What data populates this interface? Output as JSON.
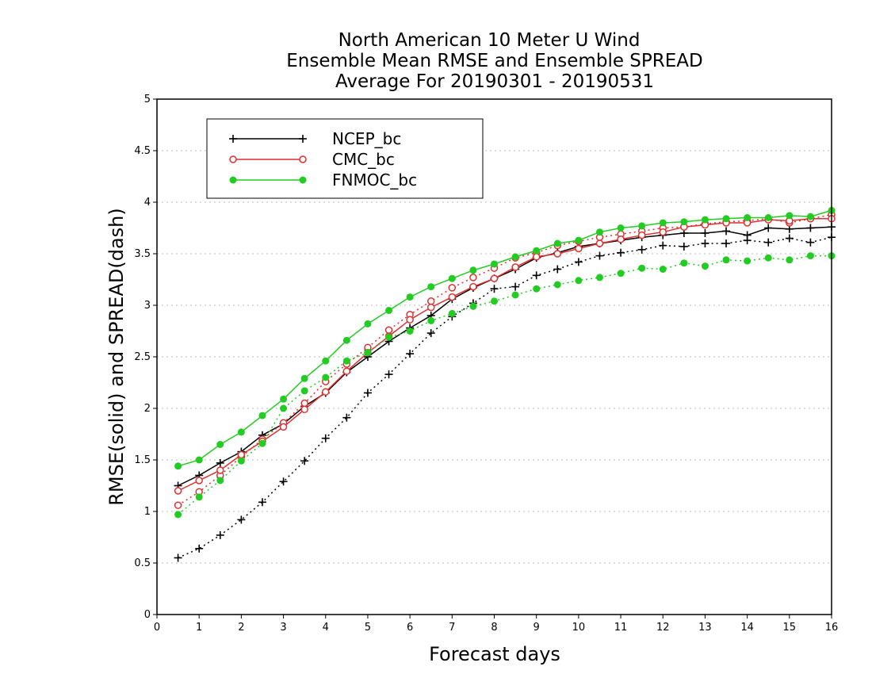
{
  "chart_data": {
    "type": "line",
    "title_lines": [
      "North American 10 Meter U Wind",
      "Ensemble Mean RMSE and Ensemble SPREAD",
      "Average For 20190301 - 20190531"
    ],
    "xlabel": "Forecast days",
    "ylabel": "RMSE(solid) and SPREAD(dash)",
    "xlim": [
      0,
      16
    ],
    "ylim": [
      0,
      5
    ],
    "xticks": [
      "0",
      "1",
      "2",
      "3",
      "4",
      "5",
      "6",
      "7",
      "8",
      "9",
      "10",
      "11",
      "12",
      "13",
      "14",
      "15",
      "16"
    ],
    "yticks": [
      "0",
      "0.5",
      "1",
      "1.5",
      "2",
      "2.5",
      "3",
      "3.5",
      "4",
      "4.5",
      "5"
    ],
    "grid": "horizontal dotted",
    "legend_position": "top-left",
    "x": [
      0.5,
      1,
      1.5,
      2,
      2.5,
      3,
      3.5,
      4,
      4.5,
      5,
      5.5,
      6,
      6.5,
      7,
      7.5,
      8,
      8.5,
      9,
      9.5,
      10,
      10.5,
      11,
      11.5,
      12,
      12.5,
      13,
      13.5,
      14,
      14.5,
      15,
      15.5,
      16
    ],
    "series": [
      {
        "name": "NCEP_bc",
        "color": "#000000",
        "marker": "plus",
        "rmse": [
          1.25,
          1.35,
          1.47,
          1.58,
          1.74,
          1.85,
          2.02,
          2.15,
          2.35,
          2.5,
          2.65,
          2.78,
          2.9,
          3.06,
          3.17,
          3.26,
          3.35,
          3.46,
          3.51,
          3.57,
          3.6,
          3.63,
          3.66,
          3.68,
          3.7,
          3.7,
          3.72,
          3.68,
          3.75,
          3.74,
          3.75,
          3.76
        ],
        "spread": [
          0.55,
          0.64,
          0.77,
          0.92,
          1.09,
          1.29,
          1.49,
          1.71,
          1.91,
          2.15,
          2.33,
          2.53,
          2.73,
          2.89,
          3.02,
          3.16,
          3.18,
          3.29,
          3.35,
          3.42,
          3.48,
          3.51,
          3.54,
          3.58,
          3.57,
          3.6,
          3.6,
          3.63,
          3.61,
          3.65,
          3.61,
          3.66
        ]
      },
      {
        "name": "CMC_bc",
        "color": "#e03030",
        "marker": "open-circle",
        "rmse": [
          1.2,
          1.3,
          1.4,
          1.55,
          1.68,
          1.82,
          1.99,
          2.16,
          2.36,
          2.54,
          2.7,
          2.86,
          2.98,
          3.08,
          3.18,
          3.26,
          3.37,
          3.47,
          3.5,
          3.55,
          3.6,
          3.64,
          3.68,
          3.71,
          3.76,
          3.78,
          3.8,
          3.8,
          3.83,
          3.82,
          3.84,
          3.84
        ],
        "spread": [
          1.06,
          1.19,
          1.35,
          1.53,
          1.7,
          1.86,
          2.05,
          2.26,
          2.43,
          2.59,
          2.76,
          2.91,
          3.04,
          3.17,
          3.27,
          3.36,
          3.46,
          3.51,
          3.58,
          3.62,
          3.66,
          3.69,
          3.72,
          3.75,
          3.76,
          3.79,
          3.81,
          3.82,
          3.84,
          3.8,
          3.84,
          3.88
        ]
      },
      {
        "name": "FNMOC_bc",
        "color": "#22cc22",
        "marker": "filled-circle",
        "rmse": [
          1.44,
          1.5,
          1.65,
          1.77,
          1.93,
          2.09,
          2.29,
          2.46,
          2.66,
          2.82,
          2.95,
          3.08,
          3.18,
          3.26,
          3.34,
          3.4,
          3.47,
          3.53,
          3.6,
          3.63,
          3.71,
          3.75,
          3.77,
          3.8,
          3.81,
          3.83,
          3.84,
          3.85,
          3.85,
          3.87,
          3.86,
          3.92
        ],
        "spread": [
          0.97,
          1.14,
          1.3,
          1.49,
          1.66,
          2.0,
          2.17,
          2.3,
          2.46,
          2.54,
          2.69,
          2.75,
          2.85,
          2.92,
          2.99,
          3.04,
          3.1,
          3.16,
          3.2,
          3.24,
          3.27,
          3.31,
          3.36,
          3.35,
          3.41,
          3.38,
          3.44,
          3.43,
          3.46,
          3.44,
          3.48,
          3.48
        ]
      }
    ]
  }
}
